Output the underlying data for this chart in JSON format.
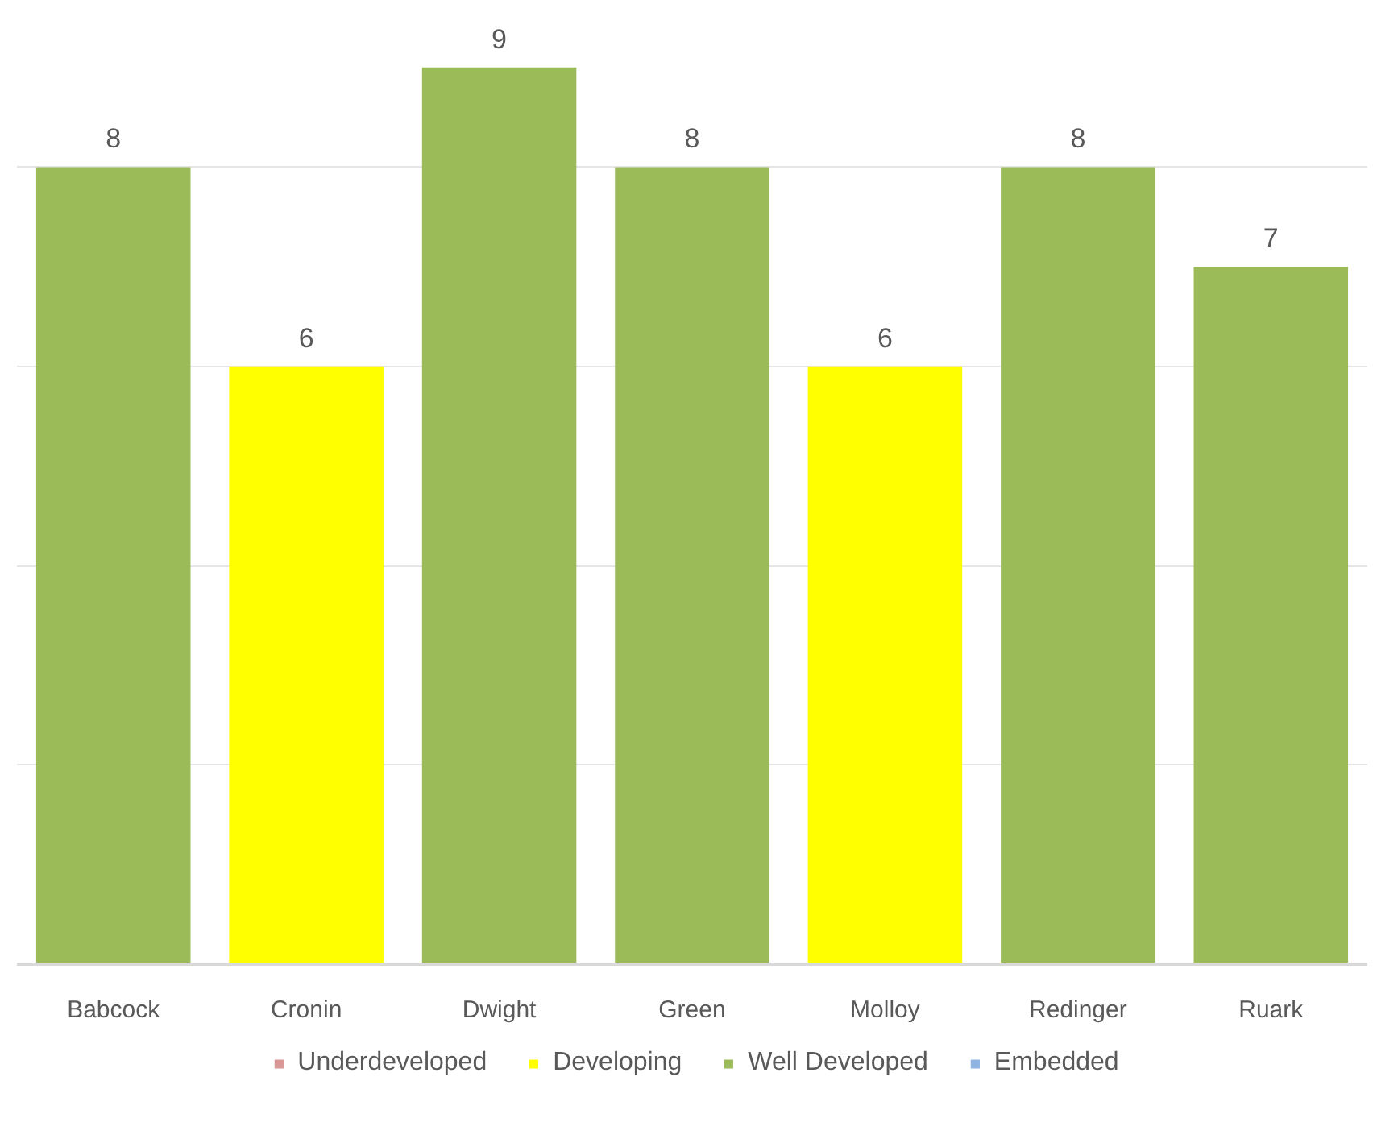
{
  "chart_data": {
    "type": "bar",
    "categories": [
      "Babcock",
      "Cronin",
      "Dwight",
      "Green",
      "Molloy",
      "Redinger",
      "Ruark"
    ],
    "series": [
      {
        "name": "Underdeveloped",
        "color": "#da9694",
        "values": [
          null,
          null,
          null,
          null,
          null,
          null,
          null
        ]
      },
      {
        "name": "Developing",
        "color": "#ffff00",
        "values": [
          null,
          6,
          null,
          null,
          6,
          null,
          null
        ]
      },
      {
        "name": "Well Developed",
        "color": "#9bbb59",
        "values": [
          8,
          null,
          9,
          8,
          null,
          8,
          7
        ]
      },
      {
        "name": "Embedded",
        "color": "#8db4e2",
        "values": [
          null,
          null,
          null,
          null,
          null,
          null,
          null
        ]
      }
    ],
    "stacked": true,
    "tick_labels": "x",
    "grid": "y",
    "legend": "bottom",
    "data_labels": true
  }
}
